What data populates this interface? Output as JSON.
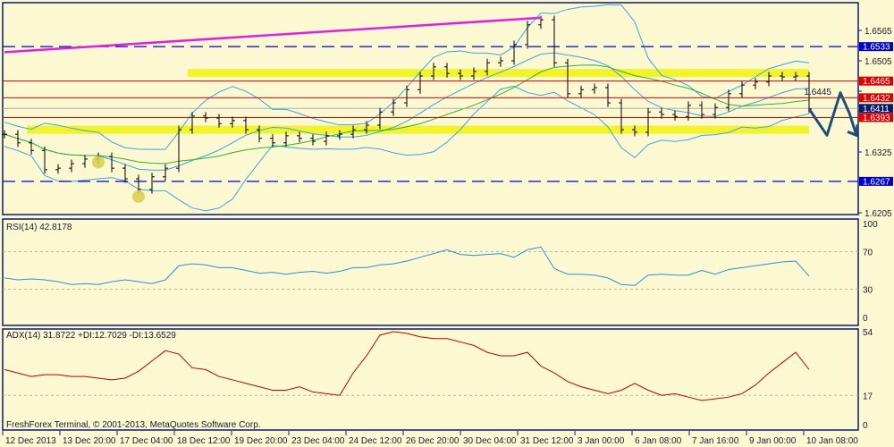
{
  "chart_data": {
    "type": "line",
    "symbol_chart": "ohlc",
    "watermark": "FreshForex Terminal, © 2001-2013, MetaQuotes Software Corp.",
    "time_labels": [
      "12 Dec 2013",
      "13 Dec 20:00",
      "17 Dec 04:00",
      "18 Dec 12:00",
      "19 Dec 20:00",
      "23 Dec 04:00",
      "24 Dec 12:00",
      "26 Dec 20:00",
      "30 Dec 04:00",
      "31 Dec 12:00",
      "3 Jan 00:00",
      "6 Jan 08:00",
      "7 Jan 16:00",
      "9 Jan 00:00",
      "10 Jan 08:00"
    ],
    "price_panel": {
      "ylim": [
        1.6205,
        1.6565
      ],
      "ticks": [
        "1.6565",
        "1.6505",
        "1.6445",
        "1.6325",
        "1.6205"
      ],
      "closes": [
        1.636,
        1.6343,
        1.6328,
        1.629,
        1.6293,
        1.6302,
        1.6311,
        1.6316,
        1.6293,
        1.6272,
        1.6251,
        1.6276,
        1.6293,
        1.6369,
        1.6396,
        1.6392,
        1.6381,
        1.6387,
        1.6369,
        1.6352,
        1.6343,
        1.6357,
        1.6352,
        1.6346,
        1.6357,
        1.636,
        1.6369,
        1.6378,
        1.6404,
        1.6422,
        1.6448,
        1.6475,
        1.6493,
        1.648,
        1.6475,
        1.6484,
        1.6501,
        1.6505,
        1.6537,
        1.6576,
        1.6586,
        1.6501,
        1.644,
        1.6448,
        1.6452,
        1.6422,
        1.6369,
        1.6364,
        1.6404,
        1.6399,
        1.6395,
        1.6417,
        1.6399,
        1.6413,
        1.644,
        1.6457,
        1.6463,
        1.6475,
        1.6473,
        1.6475,
        1.641
      ],
      "levels": [
        {
          "label": "1.6533",
          "value": 1.6533,
          "color": "#0000cc",
          "style": "dashed"
        },
        {
          "label": "1.6465",
          "value": 1.6465,
          "color": "#e00000",
          "style": "solid"
        },
        {
          "label": "1.6432",
          "value": 1.6432,
          "color": "#e00000",
          "style": "solid"
        },
        {
          "label": "1.6411",
          "value": 1.6411,
          "color": "#0b1a6e",
          "style": "current"
        },
        {
          "label": "1.6393",
          "value": 1.6393,
          "color": "#e00000",
          "style": "solid"
        },
        {
          "label": "1.6267",
          "value": 1.6267,
          "color": "#0000cc",
          "style": "dashed"
        }
      ],
      "zones": [
        {
          "value": 1.648,
          "from_bar": 14
        },
        {
          "value": 1.6368,
          "from_bar": 2
        }
      ],
      "trendline": {
        "from": [
          0,
          1.6522
        ],
        "to": [
          40,
          1.659
        ],
        "color": "#e020e0"
      },
      "forecast_arrow": [
        1.641,
        1.6358,
        1.6442,
        1.6402,
        1.6358
      ],
      "highlight_points": [
        [
          7,
          1.6305
        ],
        [
          10,
          1.6237
        ]
      ]
    },
    "rsi_panel": {
      "title": "RSI(14) 42.8178",
      "ylim": [
        0,
        100
      ],
      "ticks": [
        "100",
        "70",
        "30",
        "0"
      ],
      "levels": [
        70,
        30
      ],
      "values": [
        42,
        40,
        41,
        40,
        38,
        35,
        36,
        35,
        38,
        40,
        38,
        36,
        40,
        55,
        57,
        56,
        53,
        53,
        50,
        47,
        48,
        46,
        48,
        49,
        47,
        49,
        53,
        53,
        56,
        57,
        60,
        64,
        68,
        72,
        67,
        66,
        67,
        68,
        64,
        72,
        75,
        52,
        46,
        46,
        45,
        42,
        35,
        34,
        45,
        46,
        45,
        45,
        50,
        46,
        51,
        53,
        55,
        57,
        59,
        60,
        44
      ],
      "color": "#2e8fd6"
    },
    "adx_panel": {
      "title": "ADX(14) 31.8722 +DI:12.7029 -DI:13.6529",
      "ylim": [
        0,
        54
      ],
      "ticks": [
        "54",
        "17",
        "0"
      ],
      "levels": [
        17
      ],
      "values": [
        32,
        30,
        28,
        29,
        29,
        28,
        28,
        27,
        26,
        27,
        31,
        37,
        43,
        41,
        33,
        32,
        28,
        26,
        24,
        22,
        20,
        20,
        22,
        19,
        18,
        17,
        30,
        40,
        52,
        54,
        53,
        51,
        50,
        50,
        48,
        46,
        42,
        40,
        40,
        42,
        34,
        30,
        25,
        22,
        20,
        18,
        20,
        24,
        20,
        17,
        18,
        16,
        14,
        15,
        16,
        18,
        23,
        30,
        36,
        42,
        32
      ],
      "color": "#c00000"
    }
  }
}
